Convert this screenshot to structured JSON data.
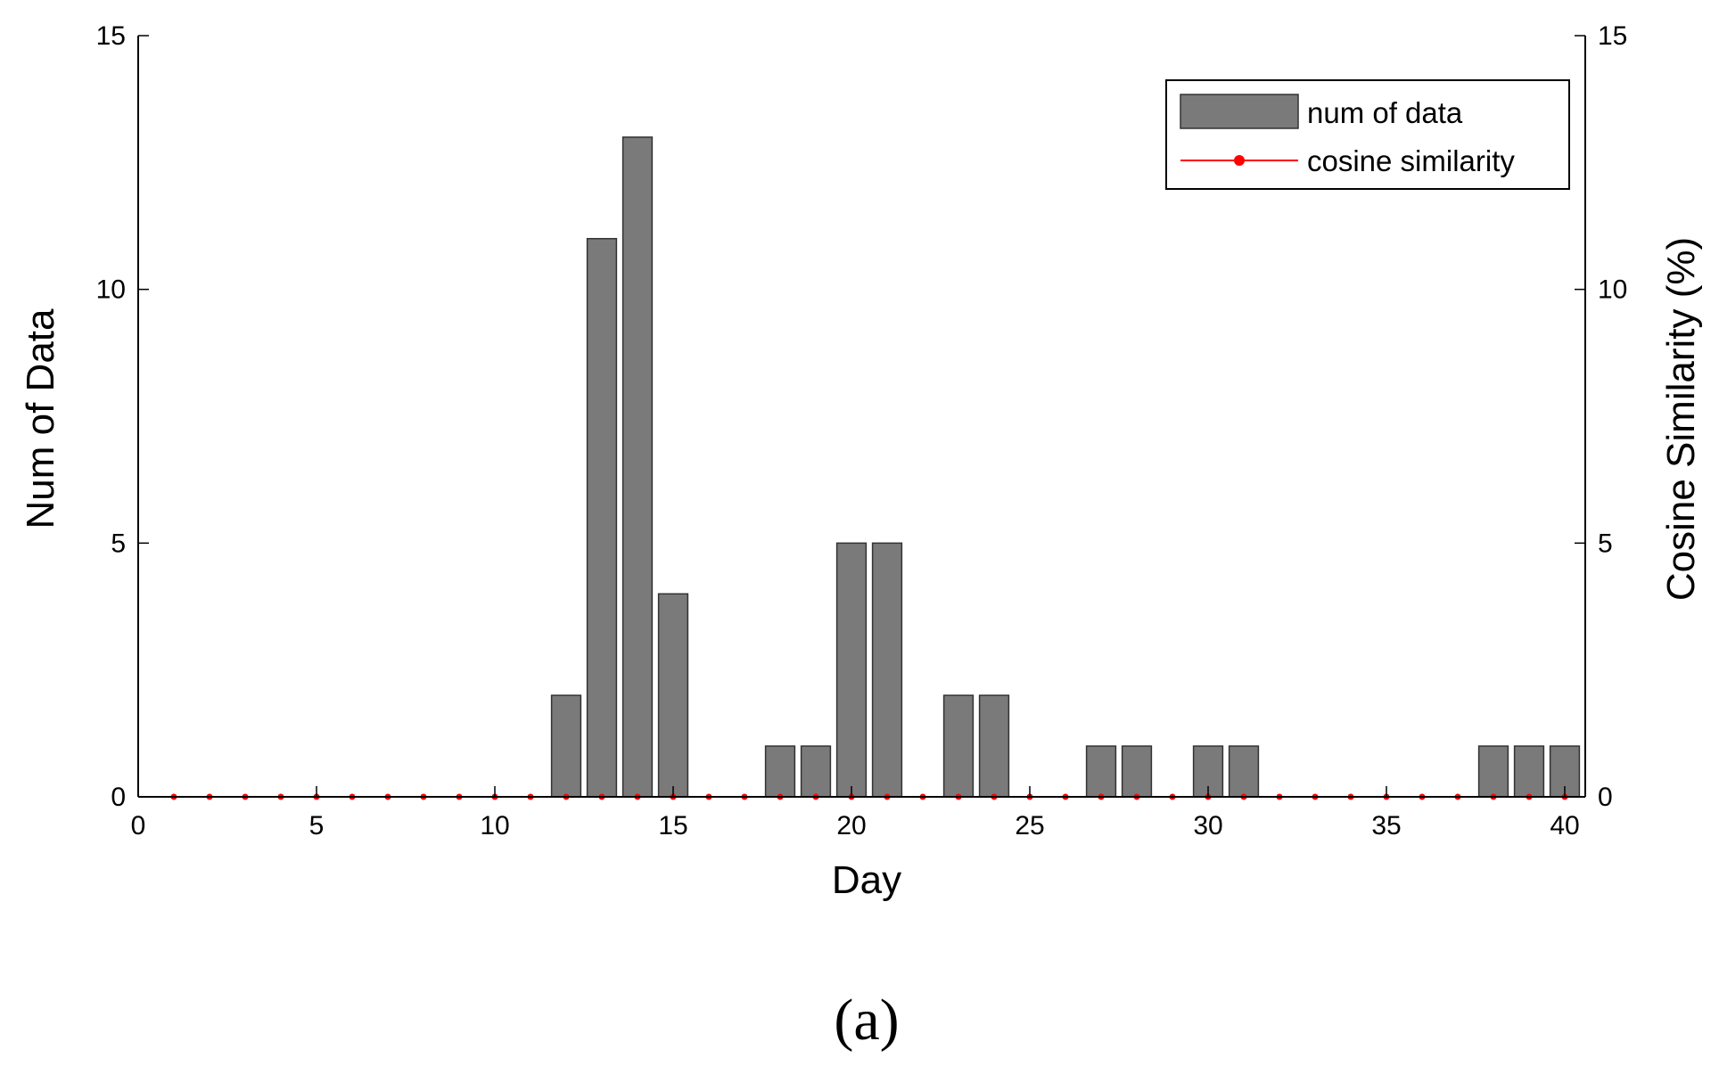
{
  "chart_data": {
    "type": "bar",
    "xlabel": "Day",
    "ylabel": "Num of Data",
    "y2label": "Cosine Similarity (%)",
    "xlim": [
      0,
      41
    ],
    "ylim": [
      0,
      15
    ],
    "y2lim": [
      0,
      15
    ],
    "xticks": [
      0,
      5,
      10,
      15,
      20,
      25,
      30,
      35,
      40
    ],
    "yticks": [
      0,
      5,
      10,
      15
    ],
    "y2ticks": [
      0,
      5,
      10,
      15
    ],
    "legend_position": "top-right",
    "grid": false,
    "series": [
      {
        "name": "num of data",
        "kind": "bar",
        "color": "#7a7a7a",
        "x": [
          12,
          13,
          14,
          15,
          18,
          19,
          20,
          21,
          23,
          24,
          27,
          28,
          30,
          31,
          38,
          39,
          40
        ],
        "values": [
          2,
          11,
          13,
          4,
          1,
          1,
          5,
          5,
          2,
          2,
          1,
          1,
          1,
          1,
          1,
          1,
          1
        ]
      },
      {
        "name": "cosine similarity",
        "kind": "line",
        "axis": "right",
        "color": "#ff0000",
        "x": [
          1,
          2,
          3,
          4,
          5,
          6,
          7,
          8,
          9,
          10,
          11,
          12,
          13,
          14,
          15,
          16,
          17,
          18,
          19,
          20,
          21,
          22,
          23,
          24,
          25,
          26,
          27,
          28,
          29,
          30,
          31,
          32,
          33,
          34,
          35,
          36,
          37,
          38,
          39,
          40
        ],
        "values": [
          0,
          0,
          0,
          0,
          0,
          0,
          0,
          0,
          0,
          0,
          0,
          0,
          0,
          0,
          0,
          0,
          0,
          0,
          0,
          0,
          0,
          0,
          0,
          0,
          0,
          0,
          0,
          0,
          0,
          0,
          0,
          0,
          0,
          0,
          0,
          0,
          0,
          0,
          0,
          0
        ]
      }
    ]
  },
  "caption": "(a)"
}
